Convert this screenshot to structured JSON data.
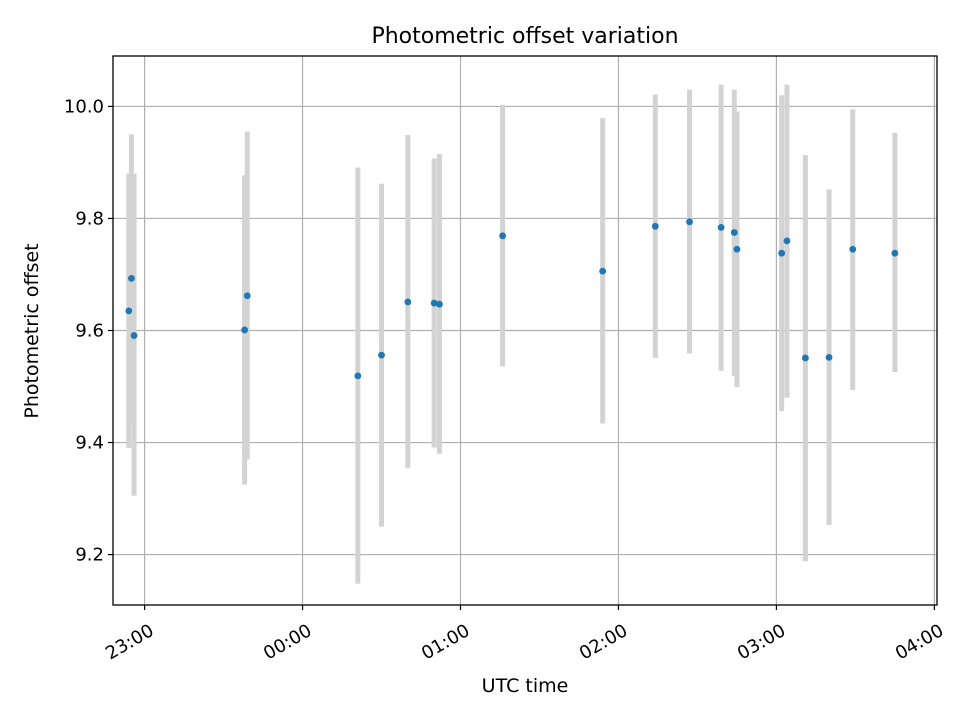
{
  "chart_data": {
    "type": "scatter",
    "title": "Photometric offset variation",
    "xlabel": "UTC time",
    "ylabel": "Photometric offset",
    "grid": true,
    "legend": "none",
    "x_is_time": true,
    "xlim": [
      "22:48",
      "04:01"
    ],
    "ylim": [
      9.11,
      10.09
    ],
    "x_ticks": [
      "23:00",
      "00:00",
      "01:00",
      "02:00",
      "03:00",
      "04:00"
    ],
    "y_ticks": [
      "9.2",
      "9.4",
      "9.6",
      "9.8",
      "10.0"
    ],
    "colors": {
      "point": "#1f77b4",
      "errorbar": "#d3d3d3",
      "grid": "#b0b0b0"
    },
    "series": [
      {
        "points": [
          {
            "x": "22:54",
            "y": 9.635,
            "y_low": 9.39,
            "y_high": 9.88
          },
          {
            "x": "22:55",
            "y": 9.693,
            "y_low": 9.435,
            "y_high": 9.95
          },
          {
            "x": "22:56",
            "y": 9.591,
            "y_low": 9.305,
            "y_high": 9.88
          },
          {
            "x": "23:38",
            "y": 9.601,
            "y_low": 9.325,
            "y_high": 9.877
          },
          {
            "x": "23:39",
            "y": 9.662,
            "y_low": 9.37,
            "y_high": 9.955
          },
          {
            "x": "00:21",
            "y": 9.519,
            "y_low": 9.148,
            "y_high": 9.891
          },
          {
            "x": "00:30",
            "y": 9.556,
            "y_low": 9.25,
            "y_high": 9.862
          },
          {
            "x": "00:40",
            "y": 9.651,
            "y_low": 9.354,
            "y_high": 9.949
          },
          {
            "x": "00:50",
            "y": 9.649,
            "y_low": 9.391,
            "y_high": 9.907
          },
          {
            "x": "00:52",
            "y": 9.647,
            "y_low": 9.38,
            "y_high": 9.915
          },
          {
            "x": "01:16",
            "y": 9.769,
            "y_low": 9.536,
            "y_high": 10.003
          },
          {
            "x": "01:54",
            "y": 9.706,
            "y_low": 9.434,
            "y_high": 9.979
          },
          {
            "x": "02:14",
            "y": 9.786,
            "y_low": 9.551,
            "y_high": 10.021
          },
          {
            "x": "02:27",
            "y": 9.794,
            "y_low": 9.559,
            "y_high": 10.03
          },
          {
            "x": "02:39",
            "y": 9.784,
            "y_low": 9.528,
            "y_high": 10.039
          },
          {
            "x": "02:44",
            "y": 9.775,
            "y_low": 9.519,
            "y_high": 10.03
          },
          {
            "x": "02:45",
            "y": 9.745,
            "y_low": 9.499,
            "y_high": 9.991
          },
          {
            "x": "03:02",
            "y": 9.738,
            "y_low": 9.456,
            "y_high": 10.02
          },
          {
            "x": "03:04",
            "y": 9.76,
            "y_low": 9.48,
            "y_high": 10.039
          },
          {
            "x": "03:11",
            "y": 9.551,
            "y_low": 9.188,
            "y_high": 9.913
          },
          {
            "x": "03:20",
            "y": 9.552,
            "y_low": 9.253,
            "y_high": 9.852
          },
          {
            "x": "03:29",
            "y": 9.745,
            "y_low": 9.494,
            "y_high": 9.995
          },
          {
            "x": "03:45",
            "y": 9.738,
            "y_low": 9.526,
            "y_high": 9.953
          }
        ]
      }
    ]
  }
}
